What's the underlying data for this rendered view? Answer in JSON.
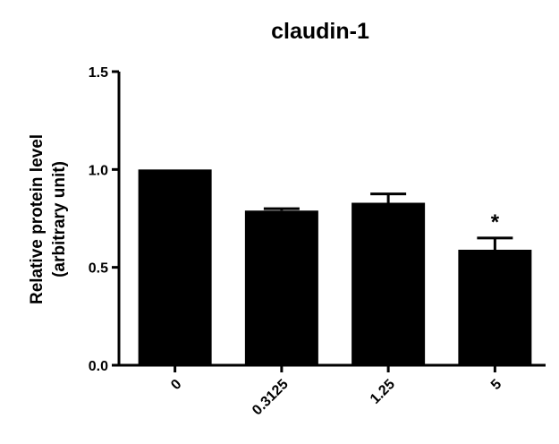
{
  "chart_data": {
    "type": "bar",
    "title": "claudin-1",
    "xlabel": "",
    "ylabel": [
      "Relative protein level",
      "(arbitrary unit)"
    ],
    "categories": [
      "0",
      "0.3125",
      "1.25",
      "5"
    ],
    "values": [
      1.0,
      0.79,
      0.83,
      0.59
    ],
    "errors": [
      0.0,
      0.01,
      0.045,
      0.06
    ],
    "annotations": [
      "",
      "",
      "",
      "*"
    ],
    "ylim": [
      0,
      1.5
    ],
    "yticks": [
      0.0,
      0.5,
      1.0,
      1.5
    ],
    "ytick_labels": [
      "0.0",
      "0.5",
      "1.0",
      "1.5"
    ],
    "grid": false,
    "bar_color": "#000000"
  }
}
